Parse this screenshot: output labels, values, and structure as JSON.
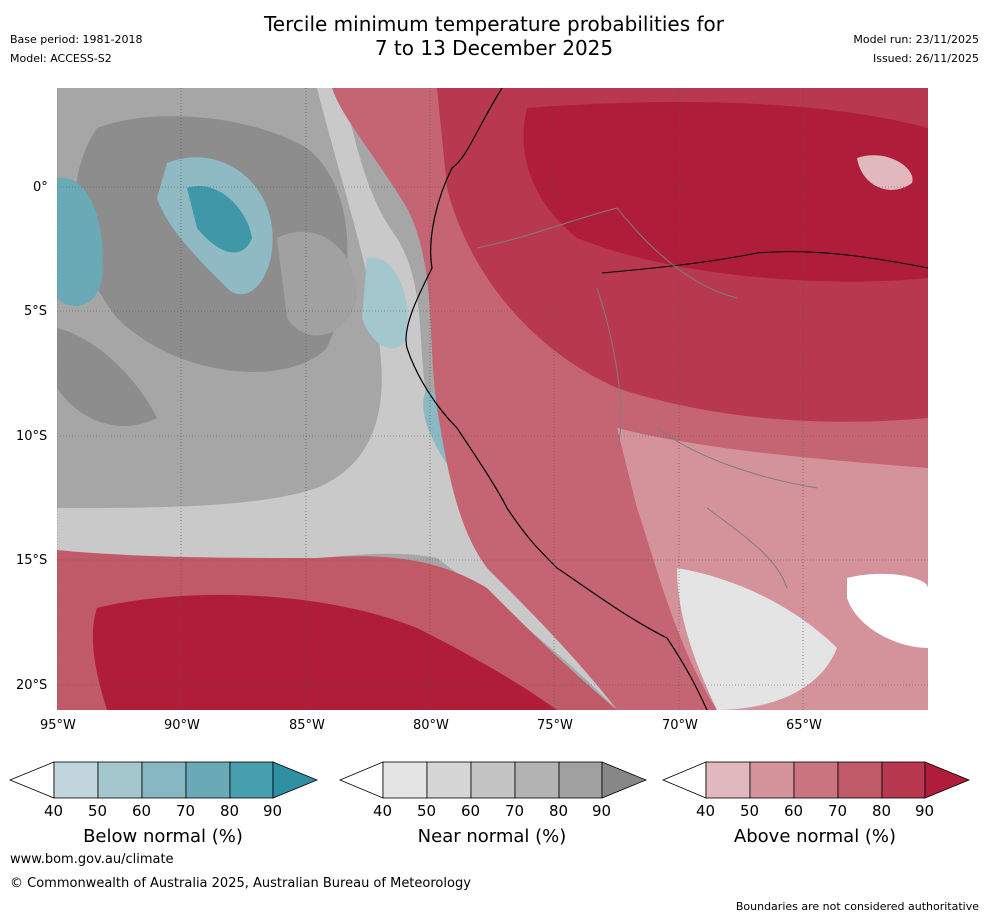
{
  "header": {
    "title_line1": "Tercile minimum temperature probabilities for",
    "title_line2": "7 to 13 December 2025",
    "base_period": "Base period: 1981-2018",
    "model": "Model: ACCESS-S2",
    "model_run": "Model run: 23/11/2025",
    "issued": "Issued: 26/11/2025"
  },
  "map": {
    "lat_labels": [
      "0°",
      "5°S",
      "10°S",
      "15°S",
      "20°S"
    ],
    "lon_labels": [
      "95°W",
      "90°W",
      "85°W",
      "80°W",
      "75°W",
      "70°W",
      "65°W"
    ]
  },
  "colorbars": [
    {
      "name": "below",
      "label": "Below normal (%)",
      "ticks": [
        "40",
        "50",
        "60",
        "70",
        "80",
        "90"
      ],
      "colors": [
        "#c1d5dc",
        "#a4c6cd",
        "#87b7c2",
        "#6aaab6",
        "#479fad",
        "#2f8fa3"
      ]
    },
    {
      "name": "near",
      "label": "Near normal (%)",
      "ticks": [
        "40",
        "50",
        "60",
        "70",
        "80",
        "90"
      ],
      "colors": [
        "#e4e4e4",
        "#d6d6d6",
        "#c4c4c4",
        "#b3b3b3",
        "#a1a1a1",
        "#878787"
      ]
    },
    {
      "name": "above",
      "label": "Above normal (%)",
      "ticks": [
        "40",
        "50",
        "60",
        "70",
        "80",
        "90"
      ],
      "colors": [
        "#e0b8bd",
        "#d4939b",
        "#ca7480",
        "#c15a68",
        "#b8394f",
        "#b01d3a"
      ]
    }
  ],
  "footer": {
    "url": "www.bom.gov.au/climate",
    "copyright": "© Commonwealth of Australia 2025, Australian Bureau of Meteorology",
    "disclaimer": "Boundaries are not considered authoritative"
  }
}
